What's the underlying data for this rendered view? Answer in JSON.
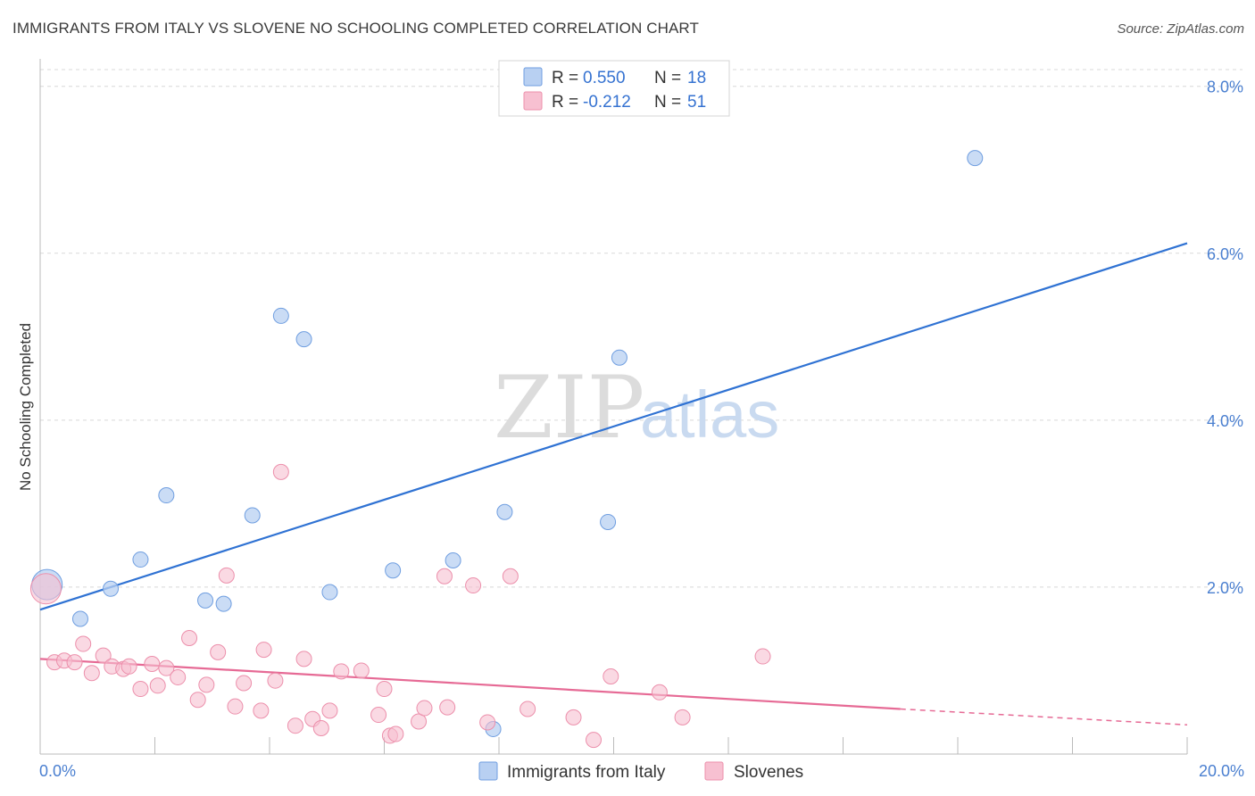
{
  "header": {
    "title": "IMMIGRANTS FROM ITALY VS SLOVENE NO SCHOOLING COMPLETED CORRELATION CHART",
    "source": "Source: ZipAtlas.com"
  },
  "watermark": {
    "zip": "ZIP",
    "atlas": "atlas"
  },
  "colors": {
    "blue_fill": "#b8d0f2",
    "blue_stroke": "#6f9ee0",
    "blue_line": "#2f72d3",
    "pink_fill": "#f7c0d1",
    "pink_stroke": "#ec8fab",
    "pink_line": "#e66a95",
    "grid": "#d8d8d8",
    "tick_label": "#4a7fd0"
  },
  "legend": {
    "r_label": "R =",
    "n_label": "N =",
    "rows": [
      {
        "r": "0.550",
        "n": "18",
        "color": "blue"
      },
      {
        "r": "-0.212",
        "n": "51",
        "color": "pink"
      }
    ]
  },
  "chart_data": {
    "type": "scatter",
    "title": "IMMIGRANTS FROM ITALY VS SLOVENE NO SCHOOLING COMPLETED CORRELATION CHART",
    "xlabel": "",
    "ylabel": "No Schooling Completed",
    "xlim": [
      0,
      20
    ],
    "ylim": [
      0,
      8.2
    ],
    "x_tick_labels": [
      "0.0%",
      "20.0%"
    ],
    "y_ticks": [
      2,
      4,
      6,
      8
    ],
    "y_tick_labels": [
      "2.0%",
      "4.0%",
      "6.0%",
      "8.0%"
    ],
    "grid": true,
    "legend_position": "top-center",
    "series": [
      {
        "name": "Immigrants from Italy",
        "color": "blue",
        "points": [
          {
            "x": 0.12,
            "y": 2.03,
            "big": true
          },
          {
            "x": 0.7,
            "y": 1.62
          },
          {
            "x": 1.23,
            "y": 1.98
          },
          {
            "x": 1.75,
            "y": 2.33
          },
          {
            "x": 2.2,
            "y": 3.1
          },
          {
            "x": 2.88,
            "y": 1.84
          },
          {
            "x": 3.2,
            "y": 1.8
          },
          {
            "x": 3.7,
            "y": 2.86
          },
          {
            "x": 4.2,
            "y": 5.25
          },
          {
            "x": 4.6,
            "y": 4.97
          },
          {
            "x": 5.05,
            "y": 1.94
          },
          {
            "x": 6.15,
            "y": 2.2
          },
          {
            "x": 7.2,
            "y": 2.32
          },
          {
            "x": 7.9,
            "y": 0.3
          },
          {
            "x": 8.1,
            "y": 2.9
          },
          {
            "x": 9.9,
            "y": 2.78
          },
          {
            "x": 10.1,
            "y": 4.75
          },
          {
            "x": 16.3,
            "y": 7.14
          }
        ],
        "trend": {
          "x": [
            0,
            20
          ],
          "y": [
            1.73,
            6.12
          ]
        }
      },
      {
        "name": "Slovenes",
        "color": "pink",
        "points": [
          {
            "x": 0.1,
            "y": 1.98,
            "big": true
          },
          {
            "x": 0.25,
            "y": 1.1
          },
          {
            "x": 0.42,
            "y": 1.12
          },
          {
            "x": 0.6,
            "y": 1.1
          },
          {
            "x": 0.75,
            "y": 1.32
          },
          {
            "x": 0.9,
            "y": 0.97
          },
          {
            "x": 1.1,
            "y": 1.18
          },
          {
            "x": 1.25,
            "y": 1.05
          },
          {
            "x": 1.45,
            "y": 1.02
          },
          {
            "x": 1.55,
            "y": 1.05
          },
          {
            "x": 1.75,
            "y": 0.78
          },
          {
            "x": 1.95,
            "y": 1.08
          },
          {
            "x": 2.05,
            "y": 0.82
          },
          {
            "x": 2.2,
            "y": 1.03
          },
          {
            "x": 2.4,
            "y": 0.92
          },
          {
            "x": 2.6,
            "y": 1.39
          },
          {
            "x": 2.75,
            "y": 0.65
          },
          {
            "x": 2.9,
            "y": 0.83
          },
          {
            "x": 3.1,
            "y": 1.22
          },
          {
            "x": 3.25,
            "y": 2.14
          },
          {
            "x": 3.4,
            "y": 0.57
          },
          {
            "x": 3.55,
            "y": 0.85
          },
          {
            "x": 3.85,
            "y": 0.52
          },
          {
            "x": 3.9,
            "y": 1.25
          },
          {
            "x": 4.1,
            "y": 0.88
          },
          {
            "x": 4.2,
            "y": 3.38
          },
          {
            "x": 4.45,
            "y": 0.34
          },
          {
            "x": 4.6,
            "y": 1.14
          },
          {
            "x": 4.75,
            "y": 0.42
          },
          {
            "x": 4.9,
            "y": 0.31
          },
          {
            "x": 5.05,
            "y": 0.52
          },
          {
            "x": 5.25,
            "y": 0.99
          },
          {
            "x": 5.6,
            "y": 1.0
          },
          {
            "x": 5.9,
            "y": 0.47
          },
          {
            "x": 6.0,
            "y": 0.78
          },
          {
            "x": 6.1,
            "y": 0.22
          },
          {
            "x": 6.2,
            "y": 0.24
          },
          {
            "x": 6.6,
            "y": 0.39
          },
          {
            "x": 6.7,
            "y": 0.55
          },
          {
            "x": 7.05,
            "y": 2.13
          },
          {
            "x": 7.1,
            "y": 0.56
          },
          {
            "x": 7.55,
            "y": 2.02
          },
          {
            "x": 7.8,
            "y": 0.38
          },
          {
            "x": 8.2,
            "y": 2.13
          },
          {
            "x": 8.5,
            "y": 0.54
          },
          {
            "x": 9.3,
            "y": 0.44
          },
          {
            "x": 9.65,
            "y": 0.17
          },
          {
            "x": 9.95,
            "y": 0.93
          },
          {
            "x": 10.8,
            "y": 0.74
          },
          {
            "x": 11.2,
            "y": 0.44
          },
          {
            "x": 12.6,
            "y": 1.17
          }
        ],
        "trend": {
          "x": [
            0,
            15
          ],
          "y": [
            1.14,
            0.54
          ]
        },
        "trend_dashed": {
          "x": [
            15,
            20
          ],
          "y": [
            0.54,
            0.35
          ]
        }
      }
    ]
  }
}
